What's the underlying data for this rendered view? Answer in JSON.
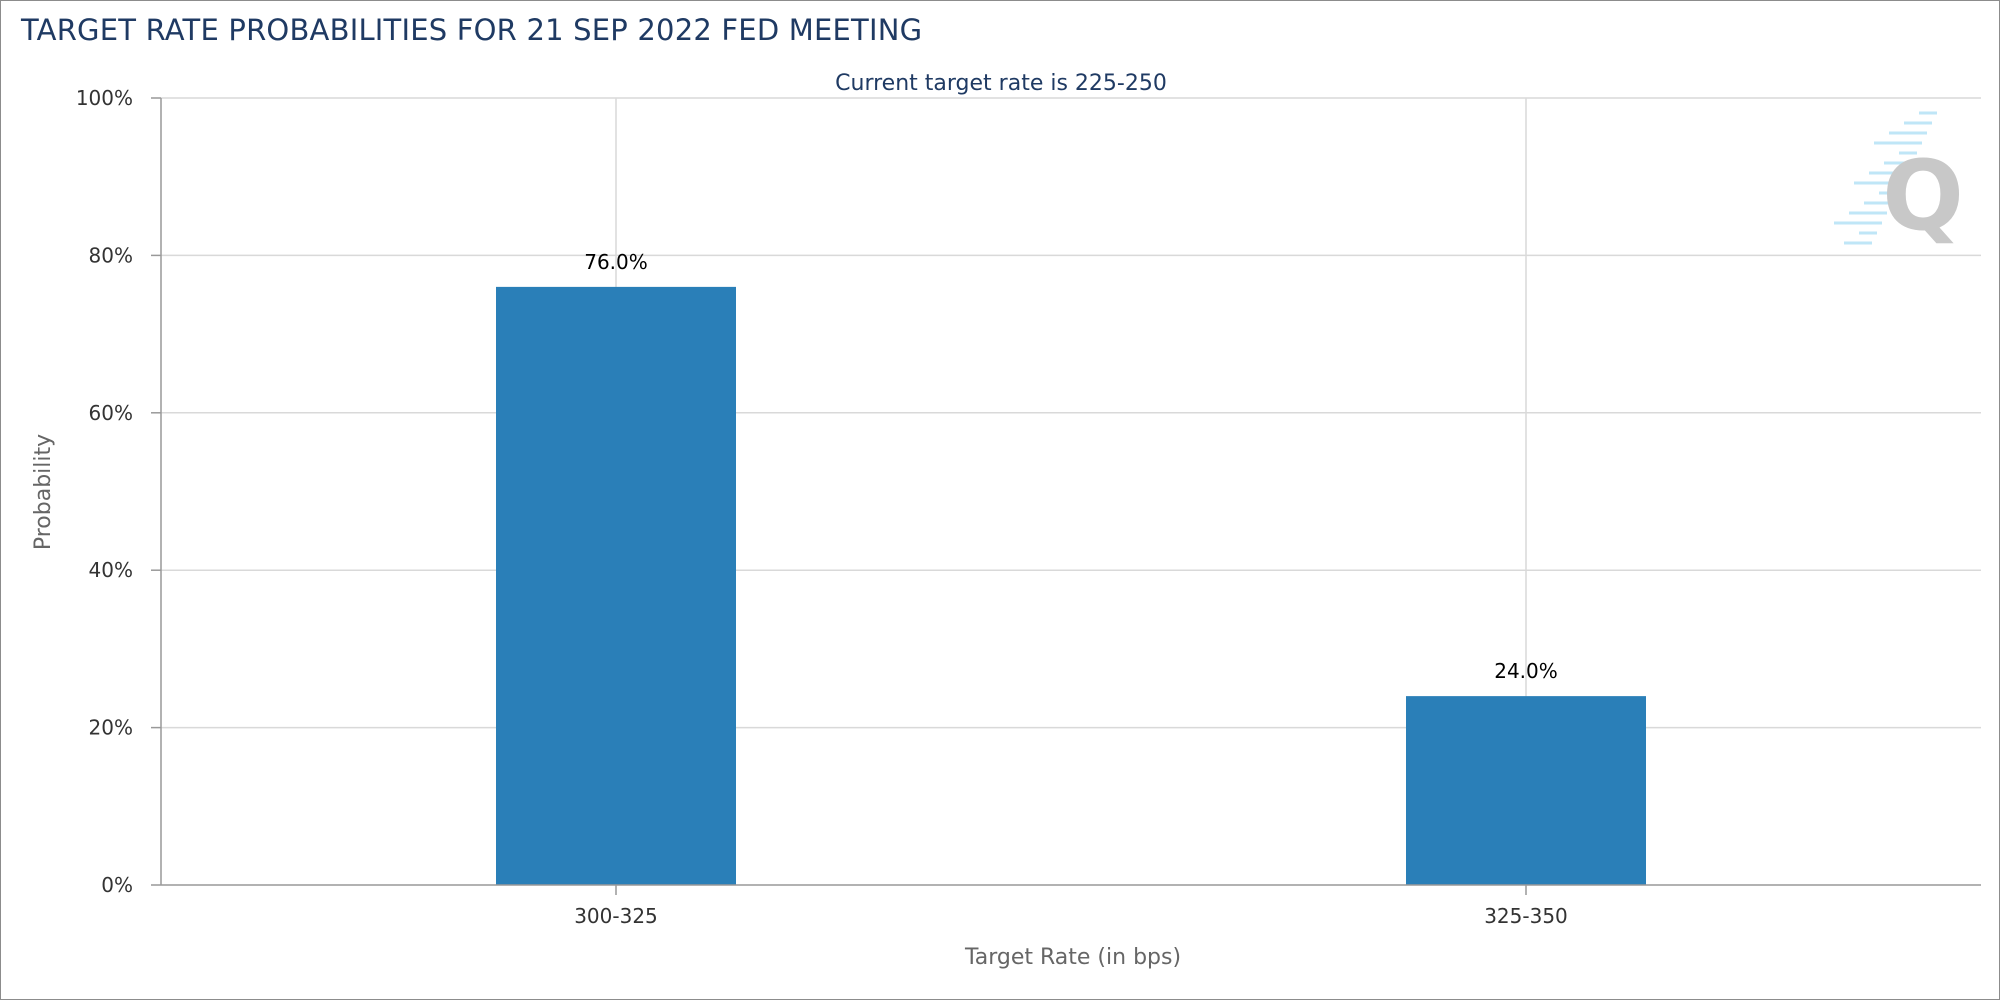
{
  "header": {
    "title": "TARGET RATE PROBABILITIES FOR 21 SEP 2022 FED MEETING"
  },
  "colors": {
    "bar": "#2a7fb8",
    "title": "#1f3a63",
    "grid": "#d9d9d9",
    "axis": "#999999",
    "watermark_letter": "#c8c8c8",
    "watermark_lines": "#bfe6f7"
  },
  "watermark": {
    "letter": "Q"
  },
  "chart_data": {
    "type": "bar",
    "subtitle": "Current target rate is 225-250",
    "categories": [
      "300-325",
      "325-350"
    ],
    "values": [
      76.0,
      24.0
    ],
    "data_labels": [
      "76.0%",
      "24.0%"
    ],
    "xlabel": "Target Rate (in bps)",
    "ylabel": "Probability",
    "ylim": [
      0,
      100
    ],
    "yticks": [
      0,
      20,
      40,
      60,
      80,
      100
    ],
    "ytick_labels": [
      "0%",
      "20%",
      "40%",
      "60%",
      "80%",
      "100%"
    ],
    "grid": true,
    "legend": "none"
  }
}
